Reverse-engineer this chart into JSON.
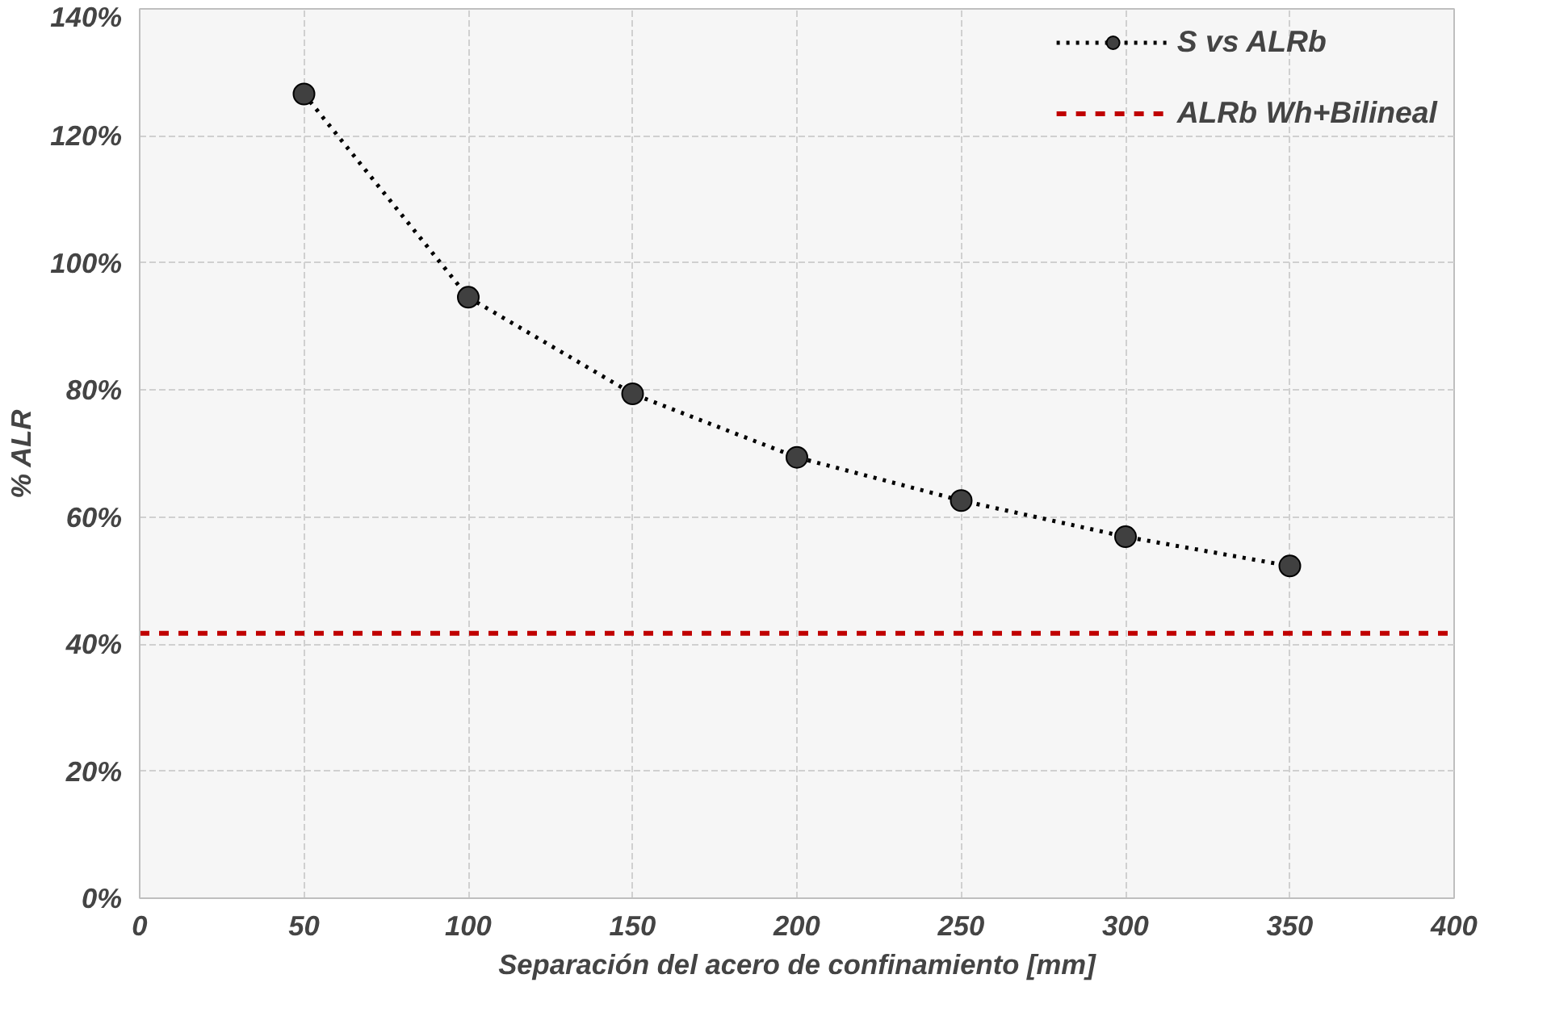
{
  "chart_data": {
    "type": "line",
    "xlabel": "Separación del acero de confinamiento [mm]",
    "ylabel": "% ALR",
    "x": [
      50,
      100,
      150,
      200,
      250,
      300,
      350
    ],
    "series": [
      {
        "name": "S vs ALRb",
        "color": "#404040",
        "values": [
          126.6,
          94.6,
          79.4,
          69.4,
          62.6,
          56.9,
          52.3
        ]
      }
    ],
    "xlim": [
      0,
      400
    ],
    "xticks": [
      0,
      50,
      100,
      150,
      200,
      250,
      300,
      350,
      400
    ],
    "ylim": [
      0,
      140
    ],
    "yticks": [
      {
        "value": 0,
        "label": "0%"
      },
      {
        "value": 20,
        "label": "20%"
      },
      {
        "value": 40,
        "label": "40%"
      },
      {
        "value": 60,
        "label": "60%"
      },
      {
        "value": 80,
        "label": "80%"
      },
      {
        "value": 100,
        "label": "100%"
      },
      {
        "value": 120,
        "label": "120%"
      },
      {
        "value": 140,
        "label": "140%"
      }
    ],
    "ref_lines": [
      {
        "axis": "y",
        "value": 41.7,
        "label": "ALRb Wh+Bilineal",
        "color": "#c00000",
        "line_style": "dashed"
      }
    ],
    "grid": true,
    "legend": "top right",
    "marker": "circle",
    "line_style": "dotted"
  }
}
